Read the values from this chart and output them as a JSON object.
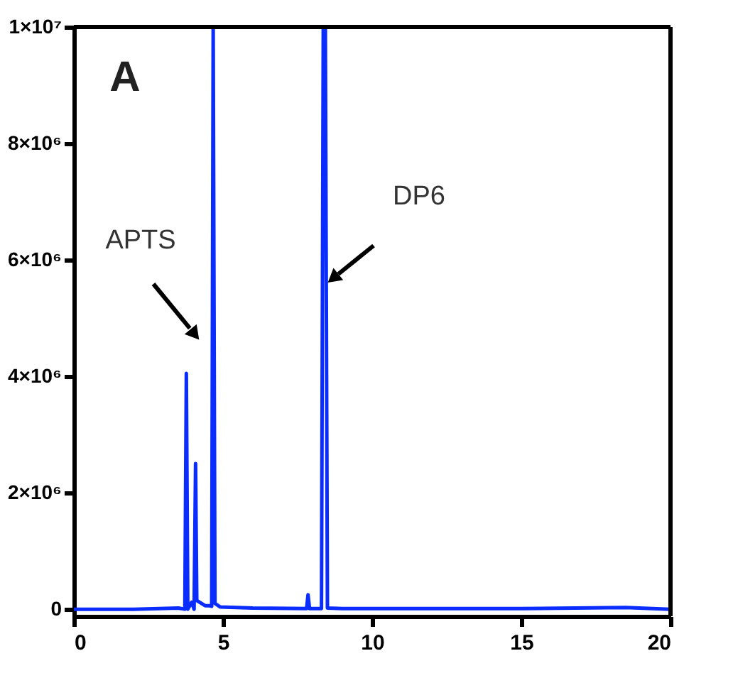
{
  "chart_data": {
    "type": "line",
    "x": [
      0,
      2.0,
      3.5,
      3.72,
      3.77,
      3.82,
      3.95,
      4.03,
      4.08,
      4.12,
      4.4,
      4.55,
      4.62,
      4.67,
      4.73,
      4.9,
      6.0,
      7.8,
      7.85,
      7.9,
      8.3,
      8.36,
      8.43,
      8.5,
      9.0,
      11.2,
      15,
      18.5,
      20
    ],
    "series": [
      {
        "color": "#0a2cff",
        "values": [
          0,
          0,
          20000,
          0,
          4050000,
          0,
          120000,
          0,
          2500000,
          150000,
          60000,
          60000,
          50000,
          10000000,
          100000,
          40000,
          20000,
          10000,
          250000,
          10000,
          10000,
          10000000,
          10000000,
          20000,
          10000,
          10000,
          10000,
          30000,
          0
        ]
      }
    ],
    "xlim": [
      0,
      20
    ],
    "xticks": [
      0,
      5,
      10,
      15,
      20
    ],
    "ylim": [
      -120000,
      10000000
    ],
    "yticks": [
      {
        "value": 0,
        "label": "0"
      },
      {
        "value": 2000000,
        "label": "2×10⁶"
      },
      {
        "value": 4000000,
        "label": "4×10⁶"
      },
      {
        "value": 6000000,
        "label": "6×10⁶"
      },
      {
        "value": 8000000,
        "label": "8×10⁶"
      },
      {
        "value": 10000000,
        "label": "1×10⁷"
      }
    ],
    "grid": false,
    "marker": "none",
    "line_style": "solid",
    "annotations": [
      "A",
      "APTS",
      "DP6"
    ]
  }
}
